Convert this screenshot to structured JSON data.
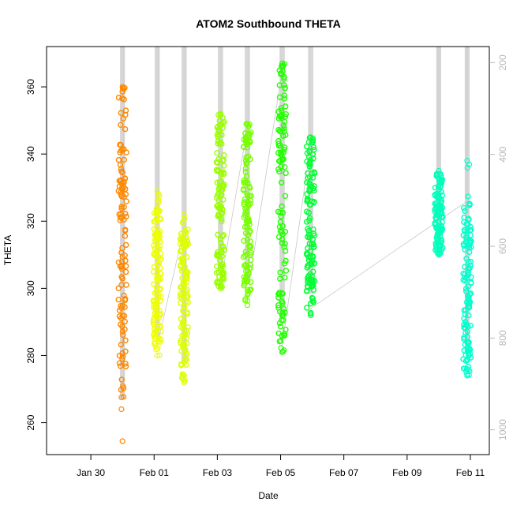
{
  "chart_data": {
    "type": "scatter",
    "title": "ATOM2 Southbound THETA",
    "xlabel": "Date",
    "ylabel": "THETA",
    "x_ticks": [
      "Jan 30",
      "Feb 01",
      "Feb 03",
      "Feb 05",
      "Feb 07",
      "Feb 09",
      "Feb 11"
    ],
    "x_tick_days": [
      -2,
      0,
      2,
      4,
      6,
      8,
      10
    ],
    "xlim_days": [
      -3.4,
      10.6
    ],
    "ylim": [
      250.5,
      372
    ],
    "y_ticks": [
      260,
      280,
      300,
      320,
      340,
      360
    ],
    "secondary_axis": {
      "label": "",
      "ticks": [
        200,
        400,
        600,
        800,
        1000
      ],
      "lim": [
        1054,
        165
      ],
      "color": "#b8b8b8"
    },
    "series": [
      {
        "color": "#ff8800",
        "x_day": -1.0,
        "theta_min": 254.5,
        "theta_max": 360,
        "dense_min": 269,
        "dense_max": 359
      },
      {
        "color": "#eeff00",
        "x_day": 0.1,
        "theta_min": 280,
        "theta_max": 329,
        "dense_min": 283,
        "dense_max": 324
      },
      {
        "color": "#ddff00",
        "x_day": 0.95,
        "theta_min": 272,
        "theta_max": 322,
        "dense_min": 274,
        "dense_max": 318
      },
      {
        "color": "#99ff00",
        "x_day": 2.1,
        "theta_min": 300,
        "theta_max": 352,
        "dense_min": 301,
        "dense_max": 351
      },
      {
        "color": "#77ff00",
        "x_day": 2.95,
        "theta_min": 295,
        "theta_max": 349,
        "dense_min": 298,
        "dense_max": 348
      },
      {
        "color": "#22ff00",
        "x_day": 4.05,
        "theta_min": 281,
        "theta_max": 367,
        "dense_min": 283,
        "dense_max": 365
      },
      {
        "color": "#00ff33",
        "x_day": 4.95,
        "theta_min": 292,
        "theta_max": 345,
        "dense_min": 294,
        "dense_max": 343
      },
      {
        "color": "#00ffbb",
        "x_day": 9.0,
        "theta_min": 310,
        "theta_max": 335,
        "dense_min": 311,
        "dense_max": 334
      },
      {
        "color": "#00ffcc",
        "x_day": 9.9,
        "theta_min": 274,
        "theta_max": 338,
        "dense_min": 276,
        "dense_max": 326
      }
    ]
  }
}
